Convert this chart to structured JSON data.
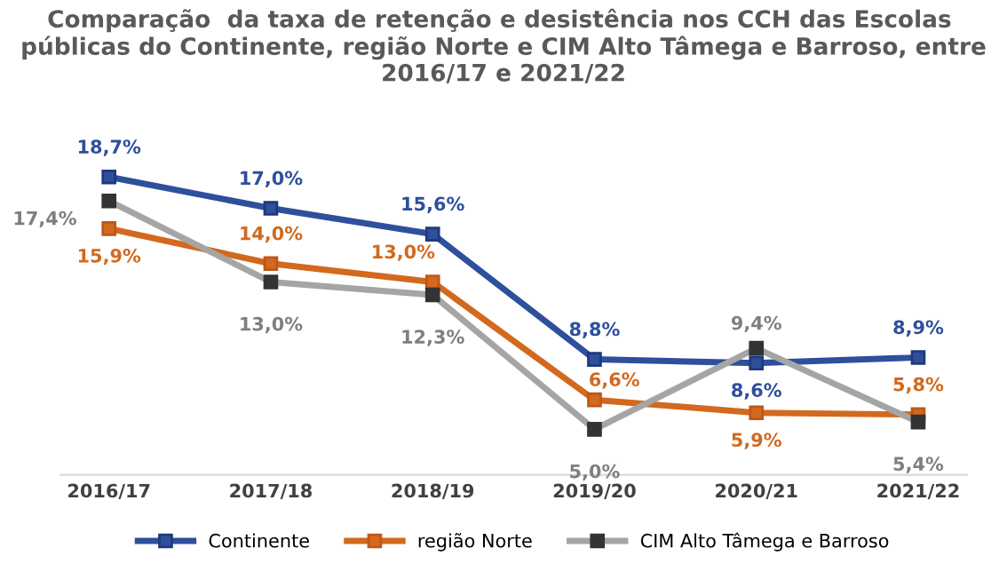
{
  "chart_data": {
    "type": "line",
    "title": "Comparação  da taxa de retenção e desistência nos CCH das Escolas  públicas do Continente, região Norte e CIM Alto Tâmega e Barroso, entre 2016/17 e 2021/22",
    "categories": [
      "2016/17",
      "2017/18",
      "2018/19",
      "2019/20",
      "2020/21",
      "2021/22"
    ],
    "series": [
      {
        "name": "Continente",
        "color": "#2e4f9c",
        "values": [
          18.7,
          17.0,
          15.6,
          8.8,
          8.6,
          8.9
        ],
        "value_labels": [
          "18,7%",
          "17,0%",
          "15,6%",
          "8,8%",
          "8,6%",
          "8,9%"
        ]
      },
      {
        "name": "região Norte",
        "color": "#d2691e",
        "values": [
          15.9,
          14.0,
          13.0,
          6.6,
          5.9,
          5.8
        ],
        "value_labels": [
          "15,9%",
          "14,0%",
          "13,0%",
          "6,6%",
          "5,9%",
          "5,8%"
        ]
      },
      {
        "name": "CIM Alto Tâmega e Barroso",
        "color": "#a5a5a5",
        "values": [
          17.4,
          13.0,
          12.3,
          5.0,
          9.4,
          5.4
        ],
        "value_labels": [
          "17,4%",
          "13,0%",
          "12,3%",
          "5,0%",
          "9,4%",
          "5,4%"
        ]
      }
    ],
    "tick_labels": "x",
    "marker": "square",
    "legend": "bottom",
    "grid": false
  }
}
